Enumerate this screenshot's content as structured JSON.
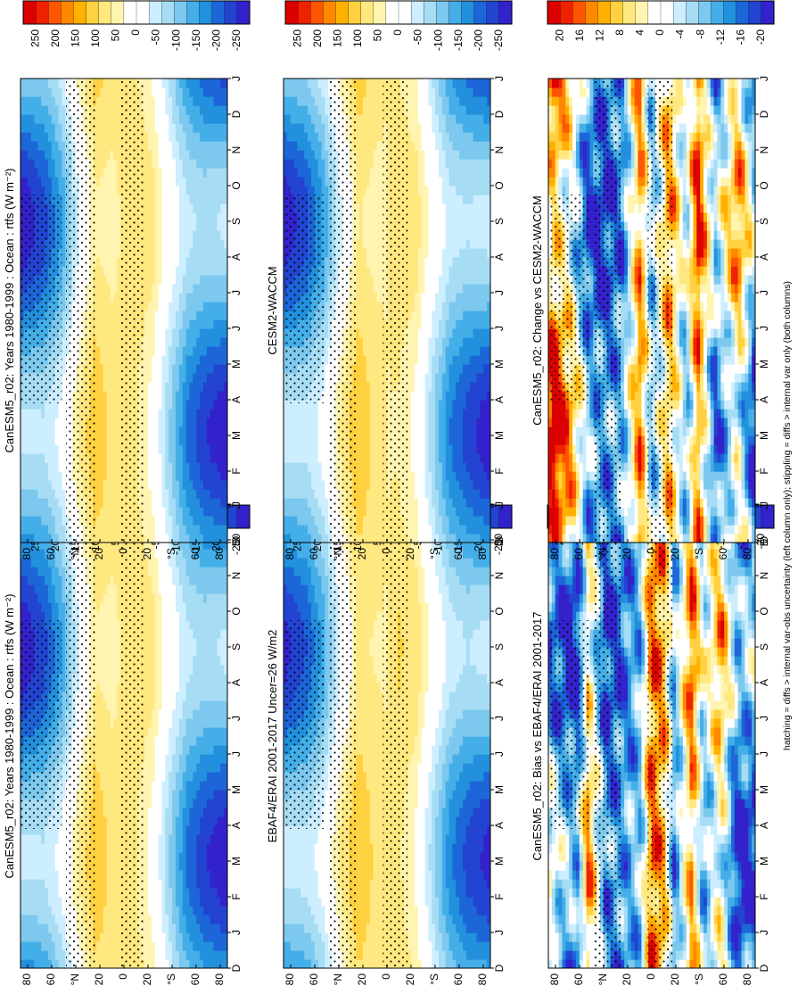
{
  "figure_note": "hatching = diffs > internal var-obs uncertainty (left column only); stippling = diffs > internal var only (both columns)",
  "chart_data": [
    {
      "type": "heatmap",
      "title": "CanESM5_r02: Years 1980-1999 : Ocean : rtfs (W m⁻²)",
      "months": [
        "D",
        "J",
        "F",
        "M",
        "A",
        "M",
        "J",
        "J",
        "A",
        "S",
        "O",
        "N",
        "D",
        "J"
      ],
      "lat_labels": [
        "80",
        "60",
        "°N",
        "20",
        "0",
        "20",
        "°S",
        "60",
        "80"
      ],
      "colorbar_labels": [
        "250",
        "200",
        "150",
        "100",
        "50",
        "0",
        "-50",
        "-100",
        "-150",
        "-200",
        "-250"
      ],
      "scale": 250,
      "lat_profile": [
        {
          "lat": -90,
          "v": -150
        },
        {
          "lat": -70,
          "v": -140
        },
        {
          "lat": -55,
          "v": -110
        },
        {
          "lat": -40,
          "v": -40
        },
        {
          "lat": -25,
          "v": 40
        },
        {
          "lat": -10,
          "v": 70
        },
        {
          "lat": 0,
          "v": 60
        },
        {
          "lat": 10,
          "v": 60
        },
        {
          "lat": 25,
          "v": 80
        },
        {
          "lat": 40,
          "v": 10
        },
        {
          "lat": 55,
          "v": -80
        },
        {
          "lat": 70,
          "v": -130
        },
        {
          "lat": 90,
          "v": -150
        }
      ],
      "seasonal_amplitude": 100
    },
    {
      "type": "heatmap",
      "title": "CanESM5_r02: Years 1980-1999 : Ocean : rtfs (W m⁻²)",
      "months": [
        "D",
        "J",
        "F",
        "M",
        "A",
        "M",
        "J",
        "J",
        "A",
        "S",
        "O",
        "N",
        "D",
        "J"
      ],
      "lat_labels": [
        "80",
        "60",
        "°N",
        "20",
        "0",
        "20",
        "°S",
        "60",
        "80"
      ],
      "colorbar_labels": [
        "250",
        "200",
        "150",
        "100",
        "50",
        "0",
        "-50",
        "-100",
        "-150",
        "-200",
        "-250"
      ],
      "scale": 250,
      "lat_profile": [
        {
          "lat": -90,
          "v": -150
        },
        {
          "lat": -70,
          "v": -140
        },
        {
          "lat": -55,
          "v": -110
        },
        {
          "lat": -40,
          "v": -40
        },
        {
          "lat": -25,
          "v": 40
        },
        {
          "lat": -10,
          "v": 70
        },
        {
          "lat": 0,
          "v": 60
        },
        {
          "lat": 10,
          "v": 60
        },
        {
          "lat": 25,
          "v": 80
        },
        {
          "lat": 40,
          "v": 10
        },
        {
          "lat": 55,
          "v": -80
        },
        {
          "lat": 70,
          "v": -130
        },
        {
          "lat": 90,
          "v": -150
        }
      ],
      "seasonal_amplitude": 100
    },
    {
      "type": "heatmap",
      "title": "EBAF4/ERAI 2001-2017 Uncer=26 W/m2",
      "months": [
        "D",
        "J",
        "F",
        "M",
        "A",
        "M",
        "J",
        "J",
        "A",
        "S",
        "O",
        "N",
        "D",
        "J"
      ],
      "lat_labels": [
        "80",
        "60",
        "°N",
        "20",
        "0",
        "20",
        "°S",
        "60",
        "80"
      ],
      "colorbar_labels": [
        "250",
        "200",
        "150",
        "100",
        "50",
        "0",
        "-50",
        "-100",
        "-150",
        "-200",
        "-250"
      ],
      "scale": 250,
      "lat_profile": [
        {
          "lat": -90,
          "v": -140
        },
        {
          "lat": -70,
          "v": -130
        },
        {
          "lat": -55,
          "v": -100
        },
        {
          "lat": -40,
          "v": -30
        },
        {
          "lat": -25,
          "v": 50
        },
        {
          "lat": -10,
          "v": 75
        },
        {
          "lat": 0,
          "v": 55
        },
        {
          "lat": 10,
          "v": 65
        },
        {
          "lat": 25,
          "v": 85
        },
        {
          "lat": 40,
          "v": 20
        },
        {
          "lat": 55,
          "v": -70
        },
        {
          "lat": 70,
          "v": -120
        },
        {
          "lat": 90,
          "v": -140
        }
      ],
      "seasonal_amplitude": 95
    },
    {
      "type": "heatmap",
      "title": "CESM2-WACCM",
      "months": [
        "D",
        "J",
        "F",
        "M",
        "A",
        "M",
        "J",
        "J",
        "A",
        "S",
        "O",
        "N",
        "D",
        "J"
      ],
      "lat_labels": [
        "80",
        "60",
        "°N",
        "20",
        "0",
        "20",
        "°S",
        "60",
        "80"
      ],
      "colorbar_labels": [
        "250",
        "200",
        "150",
        "100",
        "50",
        "0",
        "-50",
        "-100",
        "-150",
        "-200",
        "-250"
      ],
      "scale": 250,
      "lat_profile": [
        {
          "lat": -90,
          "v": -145
        },
        {
          "lat": -70,
          "v": -130
        },
        {
          "lat": -55,
          "v": -105
        },
        {
          "lat": -40,
          "v": -35
        },
        {
          "lat": -25,
          "v": 45
        },
        {
          "lat": -10,
          "v": 65
        },
        {
          "lat": 0,
          "v": 55
        },
        {
          "lat": 10,
          "v": 60
        },
        {
          "lat": 25,
          "v": 85
        },
        {
          "lat": 40,
          "v": 15
        },
        {
          "lat": 55,
          "v": -75
        },
        {
          "lat": 70,
          "v": -125
        },
        {
          "lat": 90,
          "v": -145
        }
      ],
      "seasonal_amplitude": 100
    },
    {
      "type": "heatmap",
      "title": "CanESM5_r02: Bias vs EBAF4/ERAI 2001-2017",
      "months": [
        "D",
        "J",
        "F",
        "M",
        "A",
        "M",
        "J",
        "J",
        "A",
        "S",
        "O",
        "N",
        "D",
        "J"
      ],
      "lat_labels": [
        "80",
        "60",
        "°N",
        "20",
        "0",
        "20",
        "°S",
        "60",
        "80"
      ],
      "colorbar_labels": [
        "20",
        "16",
        "12",
        "8",
        "4",
        "0",
        "-4",
        "-8",
        "-12",
        "-16",
        "-20"
      ],
      "scale": 20,
      "lat_profile": [
        {
          "lat": -90,
          "v": -10
        },
        {
          "lat": -75,
          "v": -14
        },
        {
          "lat": -60,
          "v": 6
        },
        {
          "lat": -45,
          "v": -6
        },
        {
          "lat": -35,
          "v": 12
        },
        {
          "lat": -20,
          "v": -10
        },
        {
          "lat": -10,
          "v": 10
        },
        {
          "lat": 0,
          "v": 14
        },
        {
          "lat": 10,
          "v": -8
        },
        {
          "lat": 25,
          "v": -12
        },
        {
          "lat": 40,
          "v": -14
        },
        {
          "lat": 55,
          "v": 8
        },
        {
          "lat": 65,
          "v": -14
        },
        {
          "lat": 80,
          "v": -10
        },
        {
          "lat": 90,
          "v": -6
        }
      ],
      "seasonal_amplitude": 8
    },
    {
      "type": "heatmap",
      "title": "CanESM5_r02: Change vs CESM2-WACCM",
      "months": [
        "D",
        "J",
        "F",
        "M",
        "A",
        "M",
        "J",
        "J",
        "A",
        "S",
        "O",
        "N",
        "D",
        "J"
      ],
      "lat_labels": [
        "80",
        "60",
        "°N",
        "20",
        "0",
        "20",
        "°S",
        "60",
        "80"
      ],
      "colorbar_labels": [
        "20",
        "16",
        "12",
        "8",
        "4",
        "0",
        "-4",
        "-8",
        "-12",
        "-16",
        "-20"
      ],
      "scale": 20,
      "lat_profile": [
        {
          "lat": -90,
          "v": -12
        },
        {
          "lat": -75,
          "v": 6
        },
        {
          "lat": -55,
          "v": -10
        },
        {
          "lat": -40,
          "v": 14
        },
        {
          "lat": -30,
          "v": -6
        },
        {
          "lat": -15,
          "v": 10
        },
        {
          "lat": 0,
          "v": -8
        },
        {
          "lat": 10,
          "v": 12
        },
        {
          "lat": 25,
          "v": -10
        },
        {
          "lat": 40,
          "v": -14
        },
        {
          "lat": 55,
          "v": -12
        },
        {
          "lat": 70,
          "v": 4
        },
        {
          "lat": 85,
          "v": 14
        },
        {
          "lat": 90,
          "v": 10
        }
      ],
      "seasonal_amplitude": 9
    }
  ]
}
